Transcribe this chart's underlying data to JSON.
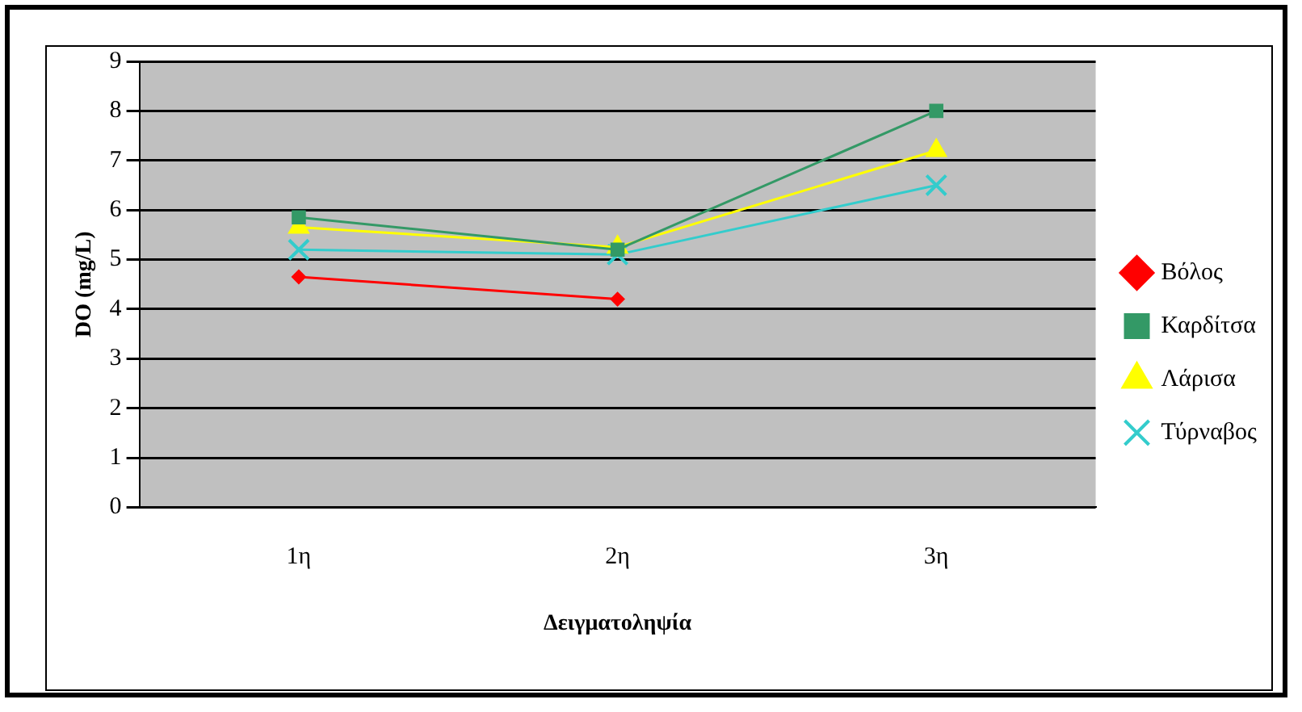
{
  "chart_data": {
    "type": "line",
    "xlabel": "Δειγματοληψία",
    "ylabel": "DO (mg/L)",
    "categories": [
      "1η",
      "2η",
      "3η"
    ],
    "series": [
      {
        "name": "Βόλος",
        "color": "#ff0000",
        "marker": "diamond",
        "values": [
          4.65,
          4.2,
          null
        ]
      },
      {
        "name": "Καρδίτσα",
        "color": "#339966",
        "marker": "square",
        "values": [
          5.85,
          5.2,
          8.0
        ]
      },
      {
        "name": "Λάρισα",
        "color": "#ffff00",
        "marker": "triangle",
        "values": [
          5.65,
          5.25,
          7.2
        ]
      },
      {
        "name": "Τύρναβος",
        "color": "#33cccc",
        "marker": "cross",
        "values": [
          5.2,
          5.1,
          6.5
        ]
      }
    ],
    "ylim": [
      0,
      9
    ],
    "yticks": [
      0,
      1,
      2,
      3,
      4,
      5,
      6,
      7,
      8,
      9
    ],
    "grid": "y",
    "legend": "right"
  }
}
